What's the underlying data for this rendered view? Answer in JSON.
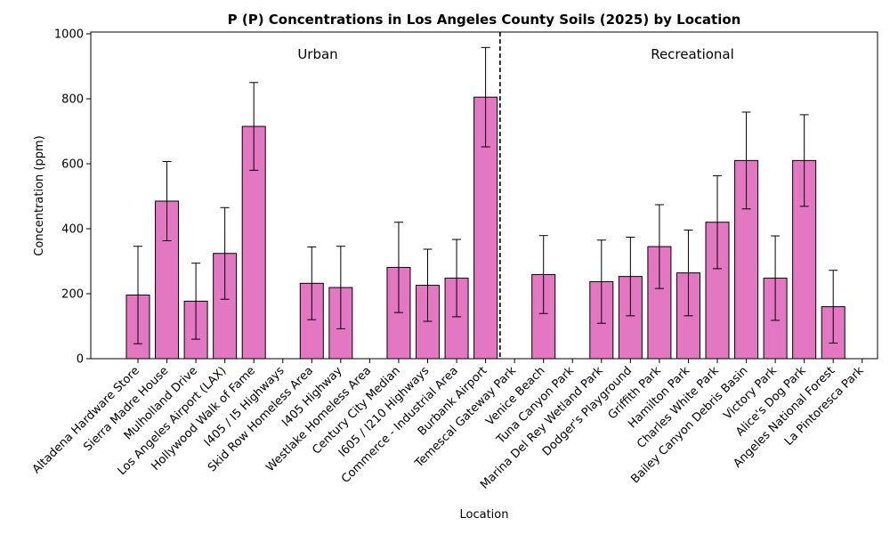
{
  "chart_data": {
    "type": "bar",
    "title": "P (P) Concentrations in Los Angeles County Soils (2025) by Location",
    "xlabel": "Location",
    "ylabel": "Concentration (ppm)",
    "ylim": [
      0,
      1000
    ],
    "yticks": [
      0,
      200,
      400,
      600,
      800,
      1000
    ],
    "grid": false,
    "bar_color": "#e377c2",
    "bar_edge_color": "#000000",
    "groups": [
      {
        "label": "Urban",
        "start_index": 0,
        "end_index": 12
      },
      {
        "label": "Recreational",
        "start_index": 13,
        "end_index": 25
      }
    ],
    "divider_between": [
      12,
      13
    ],
    "categories": [
      "Altadena Hardware Store",
      "Sierra Madre House",
      "Mulholland Drive",
      "Los Angeles Airport (LAX)",
      "Hollywood Walk of Fame",
      "I405 / I5 Highways",
      "Skid Row Homeless Area",
      "I405 Highway",
      "Westlake Homeless Area",
      "Century City Median",
      "I605 / I210 Highways",
      "Commerce - Industrial Area",
      "Burbank Airport",
      "Temescal Gateway Park",
      "Venice Beach",
      "Tuna Canyon Park",
      "Marina Del Rey Wetland Park",
      "Dodger's Playground",
      "Griffith Park",
      "Hamilton Park",
      "Charles White Park",
      "Bailey Canyon Debris Basin",
      "Victory Park",
      "Alice's Dog Park",
      "Angeles National Forest",
      "La Pintoresca Park"
    ],
    "values": [
      196,
      485,
      177,
      324,
      715,
      null,
      232,
      219,
      null,
      281,
      226,
      248,
      805,
      null,
      259,
      null,
      237,
      253,
      345,
      264,
      420,
      610,
      248,
      610,
      160,
      null
    ],
    "errors": [
      150,
      122,
      117,
      141,
      135,
      null,
      112,
      127,
      null,
      139,
      111,
      119,
      153,
      null,
      120,
      null,
      128,
      121,
      129,
      132,
      143,
      149,
      130,
      141,
      112,
      null
    ]
  }
}
